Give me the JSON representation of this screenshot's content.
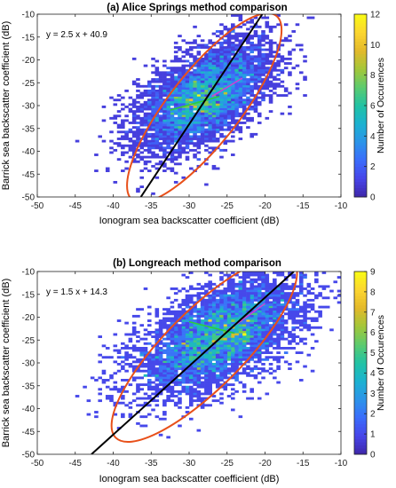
{
  "colors": {
    "ellipse": "#e8501a",
    "fit_line": "#000000",
    "inner_line_a": "#2ecc3a",
    "inner_line_b": "#d63ad6",
    "colormap": [
      "#3e26a8",
      "#4744e8",
      "#3b6cfb",
      "#2c93e9",
      "#1cb2d1",
      "#21c2a5",
      "#5ccb6e",
      "#a3c73a",
      "#e3b92b",
      "#fcd530",
      "#f9fb15"
    ]
  },
  "chart_data": [
    {
      "type": "heatmap",
      "title": "(a) Alice Springs method comparison",
      "annotation": "y = 2.5 x + 40.9",
      "xlabel": "Ionogram sea backscatter coefficient (dB)",
      "ylabel": "Barrick sea backscatter coefficient (dB)",
      "xlim": [
        -50,
        -10
      ],
      "ylim": [
        -50,
        -10
      ],
      "xticks": [
        "-50",
        "-45",
        "-40",
        "-35",
        "-30",
        "-25",
        "-20",
        "-15",
        "-10"
      ],
      "yticks": [
        "-10",
        "-15",
        "-20",
        "-25",
        "-30",
        "-35",
        "-40",
        "-45",
        "-50"
      ],
      "bin_size": 0.5,
      "fit": {
        "slope": 2.5,
        "intercept": 40.9
      },
      "cloud": {
        "center_x": -28,
        "center_y": -28,
        "spread_x": 4.5,
        "spread_y": 6,
        "corr": 0.55,
        "peak_count": 12
      },
      "ellipse": {
        "center_x": -28,
        "center_y": -30.5,
        "semi_major": 15.4,
        "semi_minor": 7.8,
        "angle_deg": 52
      },
      "colorbar": {
        "label": "Number of Occurences",
        "min": 0,
        "max": 12,
        "ticks": [
          "0",
          "2",
          "4",
          "6",
          "8",
          "10",
          "12"
        ]
      }
    },
    {
      "type": "heatmap",
      "title": "(b) Longreach method comparison",
      "annotation": "y = 1.5 x + 14.3",
      "xlabel": "Ionogram sea backscatter coefficient (dB)",
      "ylabel": "Barrick sea backscatter coefficient (dB)",
      "xlim": [
        -50,
        -10
      ],
      "ylim": [
        -50,
        -10
      ],
      "xticks": [
        "-50",
        "-45",
        "-40",
        "-35",
        "-30",
        "-25",
        "-20",
        "-15",
        "-10"
      ],
      "yticks": [
        "-10",
        "-15",
        "-20",
        "-25",
        "-30",
        "-35",
        "-40",
        "-45",
        "-50"
      ],
      "bin_size": 0.5,
      "fit": {
        "slope": 1.5,
        "intercept": 14.3
      },
      "cloud": {
        "center_x": -26,
        "center_y": -24,
        "spread_x": 5.5,
        "spread_y": 6.5,
        "corr": 0.55,
        "peak_count": 9
      },
      "ellipse": {
        "center_x": -28,
        "center_y": -27,
        "semi_major": 16.5,
        "semi_minor": 8.5,
        "angle_deg": 45
      },
      "colorbar": {
        "label": "Number of Occurences",
        "min": 0,
        "max": 9,
        "ticks": [
          "0",
          "1",
          "2",
          "3",
          "4",
          "5",
          "6",
          "7",
          "8",
          "9"
        ]
      }
    }
  ]
}
